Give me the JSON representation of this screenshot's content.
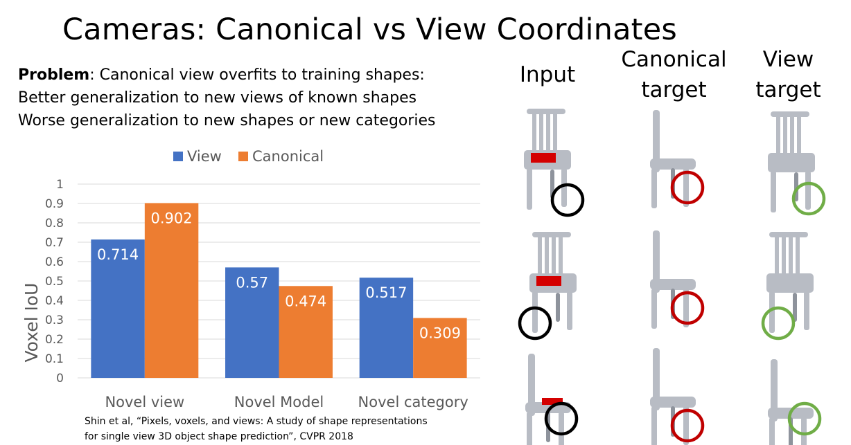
{
  "title": "Cameras: Canonical vs View Coordinates",
  "problem": {
    "lead": "Problem",
    "line1_rest": ": Canonical view overfits to training shapes:",
    "line2": "Better generalization to new views of known shapes",
    "line3": "Worse generalization to new shapes or new categories"
  },
  "citation": {
    "line1": "Shin et al, “Pixels, voxels, and views: A study of shape representations",
    "line2": "for single view 3D object shape prediction”, CVPR 2018"
  },
  "chart_data": {
    "type": "bar",
    "title": "",
    "xlabel": "",
    "ylabel": "Voxel IoU",
    "ylim": [
      0,
      1
    ],
    "yticks": [
      "0",
      "0.1",
      "0.2",
      "0.3",
      "0.4",
      "0.5",
      "0.6",
      "0.7",
      "0.8",
      "0.9",
      "1"
    ],
    "grid": true,
    "legend": "top",
    "categories": [
      "Novel view",
      "Novel Model",
      "Novel category"
    ],
    "series": [
      {
        "name": "View",
        "values": [
          0.714,
          0.57,
          0.517
        ],
        "labels": [
          "0.714",
          "0.57",
          "0.517"
        ],
        "color": "#4472C4"
      },
      {
        "name": "Canonical",
        "values": [
          0.902,
          0.474,
          0.309
        ],
        "labels": [
          "0.902",
          "0.474",
          "0.309"
        ],
        "color": "#ED7D31"
      }
    ]
  },
  "figure": {
    "headers": {
      "input": "Input",
      "canonical_1": "Canonical",
      "canonical_2": "target",
      "view_1": "View",
      "view_2": "target"
    },
    "circle_colors": {
      "input": "#000000",
      "canonical": "#C00000",
      "view": "#70AD47"
    },
    "chair_color": "#B8BCC4",
    "seat_color": "#D40000"
  }
}
